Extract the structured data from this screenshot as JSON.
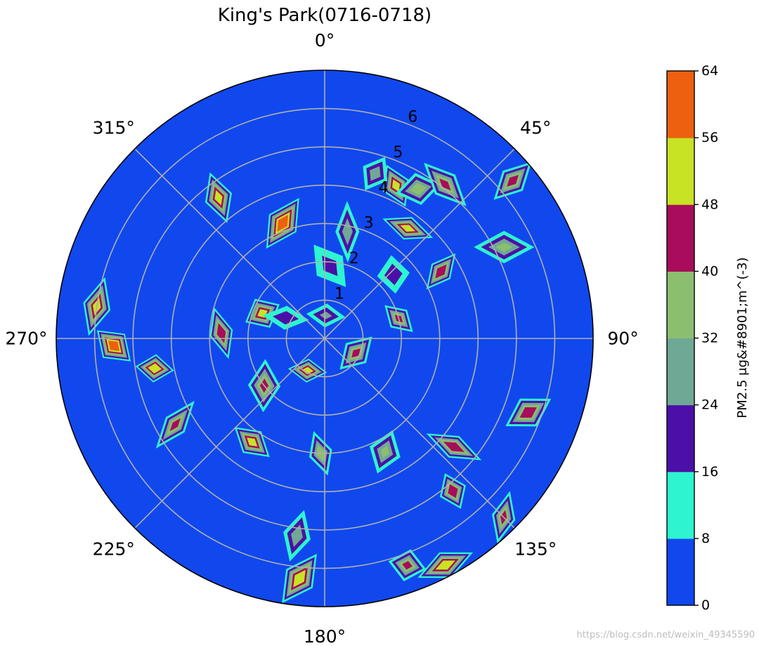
{
  "chart_data": {
    "type": "polar-contour",
    "title": "King's Park(0716-0718)",
    "theta_direction": "clockwise",
    "theta_zero": "top",
    "angle_labels": [
      {
        "deg": 0,
        "text": "0°"
      },
      {
        "deg": 45,
        "text": "45°"
      },
      {
        "deg": 90,
        "text": "90°"
      },
      {
        "deg": 135,
        "text": "135°"
      },
      {
        "deg": 180,
        "text": "180°"
      },
      {
        "deg": 225,
        "text": "225°"
      },
      {
        "deg": 270,
        "text": "270°"
      },
      {
        "deg": 315,
        "text": "315°"
      }
    ],
    "radial_ticks": [
      "1",
      "2",
      "3",
      "4",
      "5",
      "6"
    ],
    "r_max": 7,
    "grid": true,
    "colorbar": {
      "label": "PM2.5 μg&#8901;m^(-3)",
      "ticks": [
        "0",
        "8",
        "16",
        "24",
        "32",
        "40",
        "48",
        "56",
        "64"
      ],
      "levels": [
        0,
        8,
        16,
        24,
        32,
        40,
        48,
        56,
        64
      ],
      "colors": [
        "#1048ee",
        "#2ef4d0",
        "#4c10a8",
        "#70a896",
        "#8cbe70",
        "#a80c5a",
        "#c8e224",
        "#ec6010"
      ]
    },
    "hotspots": [
      {
        "theta": 3,
        "r": 0.6,
        "peak": 18
      },
      {
        "theta": 25,
        "r": 4.4,
        "peak": 44
      },
      {
        "theta": 4,
        "r": 1.9,
        "peak": 12
      },
      {
        "theta": 12,
        "r": 2.85,
        "peak": 22
      },
      {
        "theta": 17,
        "r": 4.5,
        "peak": 22
      },
      {
        "theta": 32,
        "r": 4.6,
        "peak": 30
      },
      {
        "theta": 37,
        "r": 3.6,
        "peak": 44
      },
      {
        "theta": 38,
        "r": 5.1,
        "peak": 34
      },
      {
        "theta": 47,
        "r": 2.45,
        "peak": 14
      },
      {
        "theta": 60,
        "r": 3.5,
        "peak": 40
      },
      {
        "theta": 50,
        "r": 6.4,
        "peak": 36
      },
      {
        "theta": 63,
        "r": 5.25,
        "peak": 26
      },
      {
        "theta": 75,
        "r": 2.0,
        "peak": 34
      },
      {
        "theta": 115,
        "r": 0.9,
        "peak": 34
      },
      {
        "theta": 110,
        "r": 5.65,
        "peak": 40
      },
      {
        "theta": 130,
        "r": 4.4,
        "peak": 40
      },
      {
        "theta": 140,
        "r": 5.2,
        "peak": 40
      },
      {
        "theta": 152,
        "r": 3.35,
        "peak": 26
      },
      {
        "theta": 135,
        "r": 6.6,
        "peak": 34
      },
      {
        "theta": 152,
        "r": 6.7,
        "peak": 48
      },
      {
        "theta": 160,
        "r": 6.3,
        "peak": 34
      },
      {
        "theta": 182,
        "r": 3.0,
        "peak": 30
      },
      {
        "theta": 188,
        "r": 5.2,
        "peak": 22
      },
      {
        "theta": 186,
        "r": 6.3,
        "peak": 48
      },
      {
        "theta": 208,
        "r": 0.95,
        "peak": 44
      },
      {
        "theta": 215,
        "r": 3.3,
        "peak": 44
      },
      {
        "theta": 232,
        "r": 2.0,
        "peak": 34
      },
      {
        "theta": 240,
        "r": 4.5,
        "peak": 34
      },
      {
        "theta": 260,
        "r": 4.5,
        "peak": 48
      },
      {
        "theta": 268,
        "r": 5.5,
        "peak": 56
      },
      {
        "theta": 273,
        "r": 2.7,
        "peak": 40
      },
      {
        "theta": 278,
        "r": 6.0,
        "peak": 44
      },
      {
        "theta": 292,
        "r": 1.75,
        "peak": 44
      },
      {
        "theta": 298,
        "r": 1.15,
        "peak": 14
      },
      {
        "theta": 323,
        "r": 4.6,
        "peak": 44
      },
      {
        "theta": 340,
        "r": 3.2,
        "peak": 56
      }
    ]
  },
  "watermark": "https://blog.csdn.net/weixin_49345590"
}
